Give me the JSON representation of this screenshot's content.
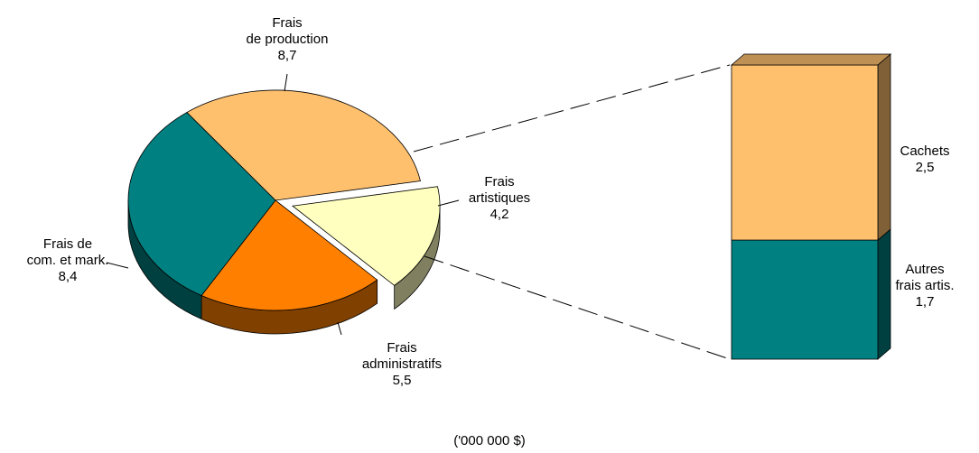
{
  "chart_data": [
    {
      "type": "pie",
      "categories": [
        [
          "Frais",
          "de production"
        ],
        [
          "Frais",
          "artistiques"
        ],
        [
          "Frais",
          "administratifs"
        ],
        [
          "Frais de",
          "com. et mark."
        ]
      ],
      "values": [
        8.7,
        4.2,
        5.5,
        8.4
      ],
      "value_labels": [
        "8,7",
        "4,2",
        "5,5",
        "8,4"
      ],
      "colors": [
        "#ffc06e",
        "#ffffc0",
        "#ff8000",
        "#008080"
      ],
      "exploded": [
        false,
        true,
        false,
        false
      ],
      "unit_label": "('000 000 $)"
    },
    {
      "type": "bar",
      "stacked": true,
      "series": [
        {
          "name": [
            "Cachets"
          ],
          "color": "#ffc06e",
          "values": [
            2.5
          ],
          "value_labels": [
            "2,5"
          ]
        },
        {
          "name": [
            "Autres",
            "frais artis."
          ],
          "color": "#008080",
          "values": [
            1.7
          ],
          "value_labels": [
            "1,7"
          ]
        }
      ]
    }
  ]
}
